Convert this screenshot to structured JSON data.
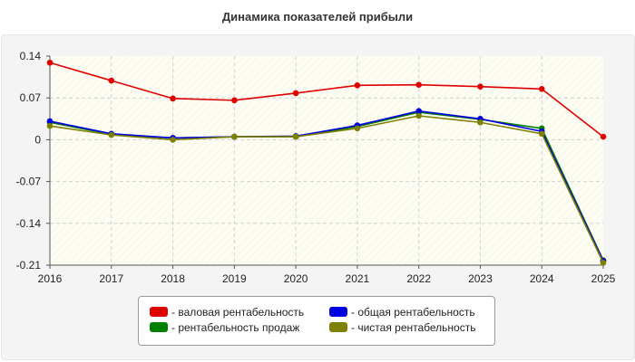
{
  "chart_data": {
    "type": "line",
    "title": "Динамика показателей прибыли",
    "xlabel": "",
    "ylabel": "",
    "x": [
      "2016",
      "2017",
      "2018",
      "2019",
      "2020",
      "2021",
      "2022",
      "2023",
      "2024",
      "2025"
    ],
    "ylim": [
      -0.21,
      0.14
    ],
    "yticks": [
      0.14,
      0.07,
      0,
      -0.07,
      -0.14,
      -0.21
    ],
    "ytick_labels": [
      "0.14",
      "0.07",
      "0",
      "-0.07",
      "-0.14",
      "-0.21"
    ],
    "grid": true,
    "legend_position": "bottom-center",
    "series": [
      {
        "name": "- валовая рентабельность",
        "color": "#e00000",
        "values": [
          0.129,
          0.099,
          0.069,
          0.066,
          0.078,
          0.091,
          0.092,
          0.089,
          0.085,
          0.005
        ]
      },
      {
        "name": "- рентабельность продаж",
        "color": "#008000",
        "values": [
          0.029,
          0.009,
          0.003,
          0.005,
          0.005,
          0.022,
          0.046,
          0.034,
          0.019,
          -0.202
        ]
      },
      {
        "name": "- общая рентабельность",
        "color": "#0000e0",
        "values": [
          0.031,
          0.01,
          0.003,
          0.005,
          0.006,
          0.024,
          0.048,
          0.035,
          0.014,
          -0.203
        ]
      },
      {
        "name": "- чистая рентабельность",
        "color": "#808000",
        "values": [
          0.023,
          0.008,
          0.0,
          0.005,
          0.005,
          0.019,
          0.04,
          0.029,
          0.01,
          -0.206
        ]
      }
    ]
  }
}
